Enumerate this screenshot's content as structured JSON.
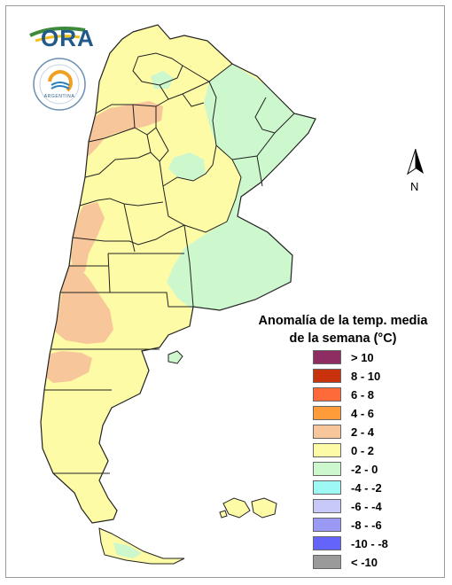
{
  "logo": {
    "ora_text": "ORA",
    "smn_text": "ARGENTINA"
  },
  "compass": {
    "north_label": "N"
  },
  "legend": {
    "title_line1": "Anomalía de la temp. media",
    "title_line2": "de la semana (°C)",
    "items": [
      {
        "label": "> 10",
        "color": "#8e2d62"
      },
      {
        "label": "8 - 10",
        "color": "#c8320c"
      },
      {
        "label": "6 - 8",
        "color": "#ff6a3a"
      },
      {
        "label": "4 - 6",
        "color": "#ff9c3a"
      },
      {
        "label": "2 - 4",
        "color": "#f7c69a"
      },
      {
        "label": "0 - 2",
        "color": "#fdfba6"
      },
      {
        "label": "-2 - 0",
        "color": "#cdf7cd"
      },
      {
        "label": "-4 - -2",
        "color": "#9ef9f4"
      },
      {
        "label": "-6 - -4",
        "color": "#c8c8f9"
      },
      {
        "label": "-8 - -6",
        "color": "#9a9af5"
      },
      {
        "label": "-10 - -8",
        "color": "#6464fa"
      },
      {
        "label": "< -10",
        "color": "#9a9a9a"
      }
    ]
  }
}
